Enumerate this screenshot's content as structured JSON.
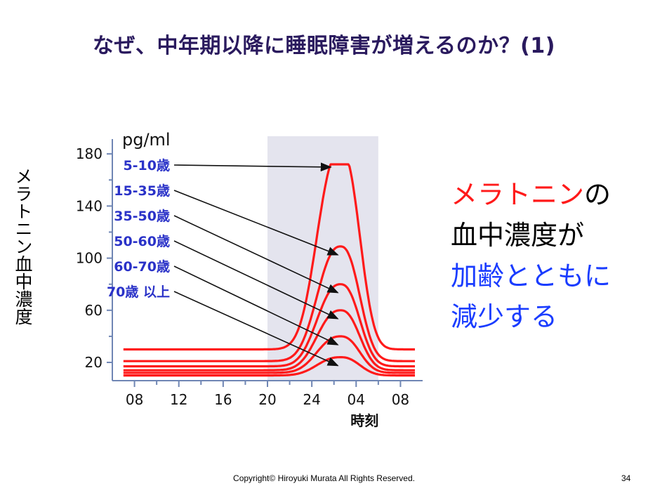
{
  "slide": {
    "title": "なぜ、中年期以降に睡眠障害が増えるのか？(1)",
    "ylabel_vertical": "メラトニン血中濃度",
    "message": {
      "line1_red": "メラトニン",
      "line1_black": "の",
      "line2": "血中濃度が",
      "line3": "加齢とともに",
      "line4": "減少する"
    },
    "footer": "Copyright© Hiroyuki Murata All Rights Reserved.",
    "page_number": "34"
  },
  "colors": {
    "curve": "#ff1a1a",
    "annotation_text": "#2a32c8",
    "night_band": "#e4e4ee",
    "title": "#2a1a5e",
    "accent_red": "#ff1a1a",
    "accent_blue": "#1a3cff"
  },
  "chart_data": {
    "type": "line",
    "unit_label": "pg/ml",
    "xlabel": "時刻",
    "x_ticks": [
      "08",
      "12",
      "16",
      "20",
      "24",
      "04",
      "08"
    ],
    "x_domain_hours": [
      6,
      34
    ],
    "y_ticks": [
      20,
      60,
      100,
      140,
      180
    ],
    "ylim": [
      6,
      186
    ],
    "shaded_region_hours": [
      20,
      30
    ],
    "series": [
      {
        "name": "5-10歳",
        "baseline": 30,
        "peak": 172,
        "peak_hour": 26.6
      },
      {
        "name": "15-35歳",
        "baseline": 21,
        "peak": 109,
        "peak_hour": 26.6
      },
      {
        "name": "35-50歳",
        "baseline": 17,
        "peak": 80,
        "peak_hour": 26.6
      },
      {
        "name": "50-60歳",
        "baseline": 14,
        "peak": 60,
        "peak_hour": 26.6
      },
      {
        "name": "60-70歳",
        "baseline": 12,
        "peak": 40,
        "peak_hour": 26.6
      },
      {
        "name": "70歳 以上",
        "baseline": 10,
        "peak": 24,
        "peak_hour": 26.6
      }
    ]
  }
}
